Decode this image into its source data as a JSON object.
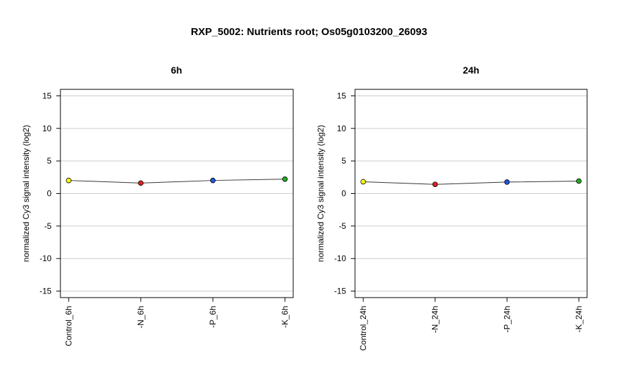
{
  "title": "RXP_5002: Nutrients root; Os05g0103200_26093",
  "chart_data": [
    {
      "type": "line",
      "title": "6h",
      "ylabel": "normalized Cy3 signal intensity (log2)",
      "xlabel": "",
      "categories": [
        "Control_6h",
        "-N_6h",
        "-P_6h",
        "-K_6h"
      ],
      "values": [
        2.0,
        1.6,
        2.0,
        2.2
      ],
      "point_colors": [
        "#ffff00",
        "#dd2222",
        "#2255dd",
        "#22aa22"
      ],
      "ylim": [
        -16,
        16
      ],
      "yticks": [
        -15,
        -10,
        -5,
        0,
        5,
        10,
        15
      ],
      "grid": true
    },
    {
      "type": "line",
      "title": "24h",
      "ylabel": "normalized Cy3 signal intensity (log2)",
      "xlabel": "",
      "categories": [
        "Control_24h",
        "-N_24h",
        "-P_24h",
        "-K_24h"
      ],
      "values": [
        1.8,
        1.4,
        1.75,
        1.9
      ],
      "point_colors": [
        "#ffff00",
        "#dd2222",
        "#2255dd",
        "#22aa22"
      ],
      "ylim": [
        -16,
        16
      ],
      "yticks": [
        -15,
        -10,
        -5,
        0,
        5,
        10,
        15
      ],
      "grid": true
    }
  ]
}
